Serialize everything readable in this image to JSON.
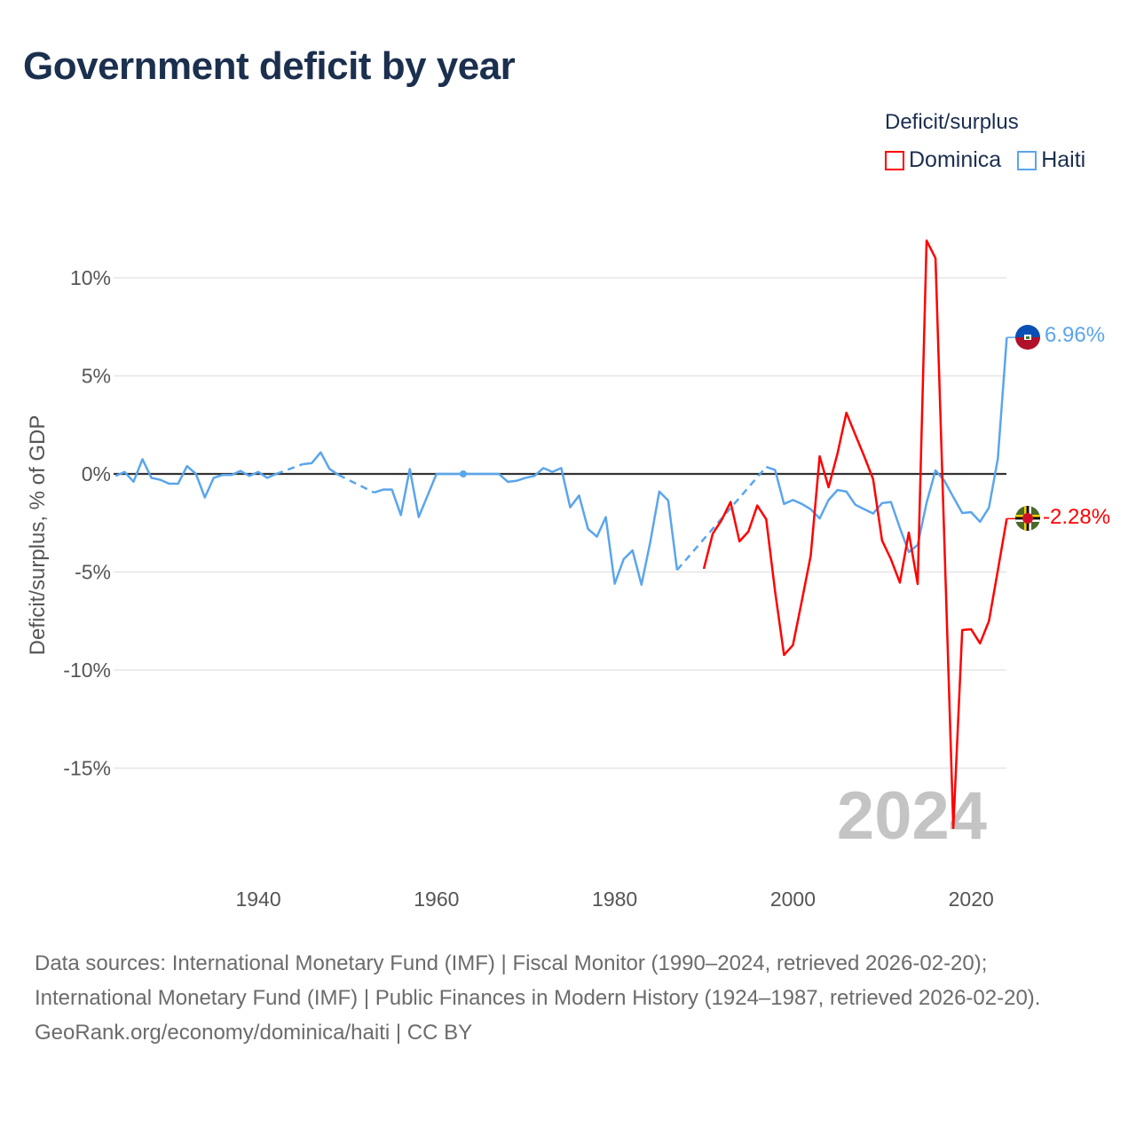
{
  "title": "Government deficit by year",
  "legend": {
    "title": "Deficit/surplus",
    "items": [
      {
        "label": "Dominica",
        "color": "#ff0000"
      },
      {
        "label": "Haiti",
        "color": "#5aa5ec"
      }
    ]
  },
  "watermark_year": "2024",
  "end_labels": {
    "haiti": "6.96%",
    "dominica": "-2.28%"
  },
  "footer": {
    "sources": "Data sources: International Monetary Fund (IMF) | Fiscal Monitor (1990–2024, retrieved 2026-02-20); International Monetary Fund (IMF) | Public Finances in Modern History (1924–1987, retrieved 2026-02-20).",
    "credit": "GeoRank.org/economy/dominica/haiti | CC BY"
  },
  "chart_data": {
    "type": "line",
    "title": "Government deficit by year",
    "xlabel": "",
    "ylabel": "Deficit/surplus, % of GDP",
    "xlim": [
      1924,
      2024
    ],
    "ylim": [
      -20,
      13
    ],
    "xticks": [
      1940,
      1960,
      1980,
      2000,
      2020
    ],
    "xtick_labels": [
      "1940",
      "1960",
      "1980",
      "2000",
      "2020"
    ],
    "yticks": [
      10,
      5,
      0,
      -5,
      -10,
      -15
    ],
    "ytick_labels": [
      "10%",
      "5%",
      "0%",
      "-5%",
      "-10%",
      "-15%"
    ],
    "grid": true,
    "legend_position": "top-right",
    "series": [
      {
        "name": "Haiti",
        "color": "#5aa5ec",
        "start_year": 1924,
        "markers": [
          1963
        ],
        "values": [
          -0.1,
          0.1,
          -0.4,
          0.75,
          -0.2,
          -0.3,
          -0.5,
          -0.5,
          0.4,
          0,
          -1.2,
          -0.2,
          -0.05,
          -0.05,
          0.15,
          -0.1,
          0.1,
          -0.2,
          0,
          null,
          null,
          0.5,
          0.55,
          1.1,
          0.25,
          -0.05,
          null,
          null,
          null,
          -0.95,
          -0.8,
          -0.8,
          -2.1,
          0.25,
          -2.2,
          -1.1,
          0,
          0,
          0,
          0,
          0,
          0,
          0,
          0,
          -0.4,
          -0.35,
          -0.2,
          -0.1,
          0.3,
          0.1,
          0.3,
          -1.7,
          -1.1,
          -2.8,
          -3.2,
          -2.2,
          -5.6,
          -4.35,
          -3.9,
          -5.65,
          -3.45,
          -0.9,
          -1.35,
          -4.9,
          null,
          null,
          null,
          null,
          null,
          null,
          null,
          null,
          null,
          0.36,
          0.2,
          -1.53,
          -1.33,
          -1.53,
          -1.8,
          -2.27,
          -1.33,
          -0.82,
          -0.9,
          -1.57,
          -1.8,
          -2.02,
          -1.49,
          -1.43,
          -2.75,
          -3.98,
          -3.62,
          -1.47,
          0.18,
          -0.35,
          -1.18,
          -1.99,
          -1.95,
          -2.44,
          -1.72,
          0.79,
          6.96
        ]
      },
      {
        "name": "Dominica",
        "color": "#ff0000",
        "start_year": 1990,
        "markers": [],
        "values": [
          -4.84,
          -3.05,
          -2.35,
          -1.43,
          -3.44,
          -2.94,
          -1.61,
          -2.31,
          -6.0,
          -9.23,
          -8.73,
          -6.47,
          -4.16,
          0.9,
          -0.68,
          1.04,
          3.12,
          2.0,
          0.9,
          -0.27,
          -3.39,
          -4.35,
          -5.54,
          -2.99,
          -5.61,
          11.9,
          11.0,
          -3.5,
          -18.05,
          -7.96,
          -7.92,
          -8.64,
          -7.5,
          -4.91,
          -2.28
        ]
      }
    ]
  }
}
